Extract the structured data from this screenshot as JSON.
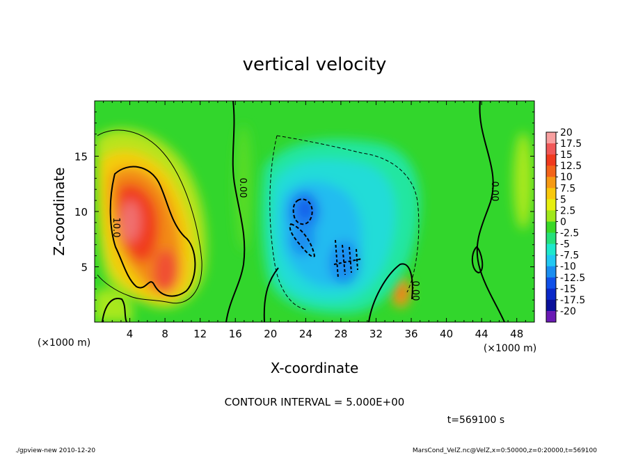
{
  "chart_data": {
    "type": "heatmap",
    "title": "vertical velocity",
    "xlabel": "X-coordinate",
    "ylabel": "Z-coordinate",
    "x_unit_left": "(×1000 m)",
    "x_unit_right": "(×1000 m)",
    "xlim": [
      0,
      50
    ],
    "ylim": [
      0,
      20
    ],
    "x_ticks": [
      4,
      8,
      12,
      16,
      20,
      24,
      28,
      32,
      36,
      40,
      44,
      48
    ],
    "y_ticks": [
      5,
      10,
      15
    ],
    "contour_interval_text": "CONTOUR INTERVAL = 5.000E+00",
    "time_text": "t=569100 s",
    "contour_labels": [
      "10.0",
      "0.00",
      "0.00",
      "0.00"
    ],
    "colorbar": {
      "levels": [
        "20",
        "17.5",
        "15",
        "12.5",
        "10",
        "7.5",
        "5",
        "2.5",
        "0",
        "-2.5",
        "-5",
        "-7.5",
        "-10",
        "-12.5",
        "-15",
        "-17.5",
        "-20"
      ],
      "colors": [
        "#f8a0a0",
        "#f05858",
        "#f03a1e",
        "#f3641a",
        "#f69a14",
        "#f8c80c",
        "#e6ef10",
        "#a0e81c",
        "#3ad827",
        "#26e07a",
        "#1ee8cc",
        "#22c8f2",
        "#1a8ef0",
        "#1050e8",
        "#0a28c8",
        "#0a109a",
        "#6a1ab4"
      ]
    },
    "features": [
      {
        "x": 4.5,
        "z": 9.5,
        "value": 17.5
      },
      {
        "x": 8,
        "z": 5,
        "value": 12.5
      },
      {
        "x": 34.5,
        "z": 3,
        "value": 10
      },
      {
        "x": 23.5,
        "z": 10,
        "value": -10
      },
      {
        "x": 29,
        "z": 6,
        "value": -7.5
      }
    ]
  },
  "footer": {
    "left": "./gpview-new   2010-12-20",
    "right": "MarsCond_VelZ.nc@VelZ,x=0:50000,z=0:20000,t=569100"
  }
}
